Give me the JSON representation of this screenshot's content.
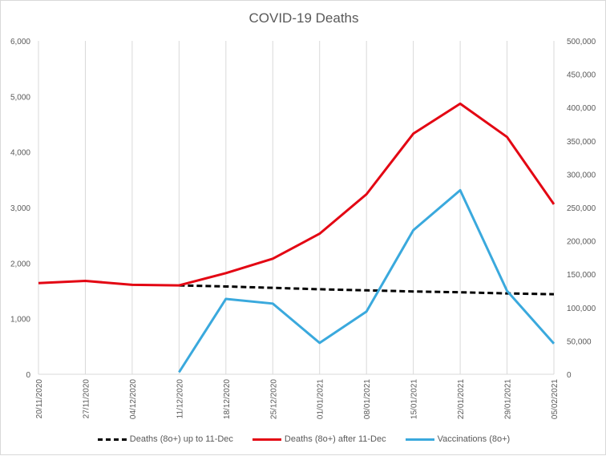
{
  "chart_data": {
    "type": "line",
    "title": "COVID-19 Deaths",
    "categories": [
      "20/11/2020",
      "27/11/2020",
      "04/12/2020",
      "11/12/2020",
      "18/12/2020",
      "25/12/2020",
      "01/01/2021",
      "08/01/2021",
      "15/01/2021",
      "22/01/2021",
      "29/01/2021",
      "05/02/2021"
    ],
    "y_left": {
      "range": [
        0,
        6000
      ],
      "ticks": [
        "0",
        "1,000",
        "2,000",
        "3,000",
        "4,000",
        "5,000",
        "6,000"
      ]
    },
    "y_right": {
      "range": [
        0,
        500000
      ],
      "ticks": [
        "0",
        "50,000",
        "100,000",
        "150,000",
        "200,000",
        "250,000",
        "300,000",
        "350,000",
        "400,000",
        "450,000",
        "500,000"
      ]
    },
    "grid": "vertical",
    "legend_position": "bottom",
    "series": [
      {
        "name": "Deaths (8o+) up to 11-Dec",
        "axis": "left",
        "color": "#000000",
        "dashed": true,
        "values": [
          null,
          null,
          null,
          1600,
          1580,
          1555,
          1530,
          1510,
          1490,
          1475,
          1455,
          1440
        ]
      },
      {
        "name": "Deaths (8o+) after 11-Dec",
        "axis": "left",
        "color": "#e30613",
        "dashed": false,
        "values": [
          1640,
          1680,
          1610,
          1600,
          1820,
          2080,
          2530,
          3240,
          4330,
          4870,
          4270,
          3060
        ]
      },
      {
        "name": "Vaccinations (8o+)",
        "axis": "right",
        "color": "#3aa9dd",
        "dashed": false,
        "values": [
          null,
          null,
          null,
          3000,
          113000,
          106000,
          47000,
          94000,
          216000,
          276000,
          125000,
          46000
        ]
      }
    ]
  }
}
